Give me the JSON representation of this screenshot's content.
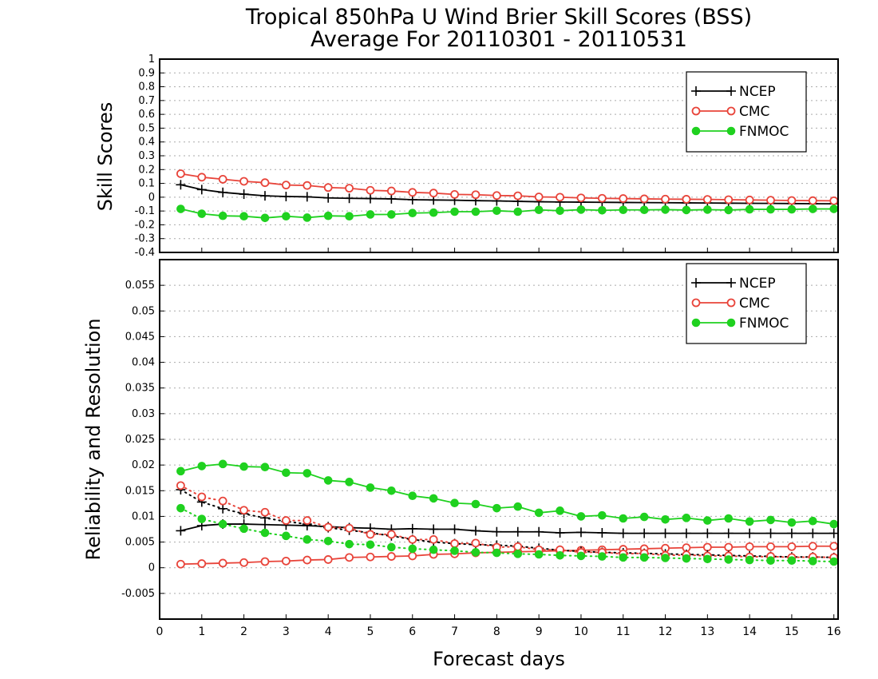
{
  "title_line1": "Tropical 850hPa U Wind Brier Skill Scores (BSS)",
  "title_line2": "Average For 20110301 - 20110531",
  "xlabel": "Forecast days",
  "colors": {
    "NCEP": "#000000",
    "CMC": "#e8443a",
    "FNMOC": "#1fd11f"
  },
  "chart_data": [
    {
      "type": "line",
      "ylabel": "Skill Scores",
      "xlim": [
        0,
        16.1
      ],
      "ylim": [
        -0.4,
        1
      ],
      "xticks": [
        "0",
        "1",
        "2",
        "3",
        "4",
        "5",
        "6",
        "7",
        "8",
        "9",
        "10",
        "11",
        "12",
        "13",
        "14",
        "15",
        "16"
      ],
      "yticks": [
        "-0.4",
        "-0.3",
        "-0.2",
        "-0.1",
        "0",
        "0.1",
        "0.2",
        "0.3",
        "0.4",
        "0.5",
        "0.6",
        "0.7",
        "0.8",
        "0.9",
        "1"
      ],
      "grid": true,
      "legend": {
        "position": "top-right",
        "entries": [
          "NCEP",
          "CMC",
          "FNMOC"
        ]
      },
      "x": [
        0.5,
        1,
        1.5,
        2,
        2.5,
        3,
        3.5,
        4,
        4.5,
        5,
        5.5,
        6,
        6.5,
        7,
        7.5,
        8,
        8.5,
        9,
        9.5,
        10,
        10.5,
        11,
        11.5,
        12,
        12.5,
        13,
        13.5,
        14,
        14.5,
        15,
        15.5,
        16
      ],
      "series": [
        {
          "name": "NCEP",
          "marker": "plus",
          "style": "solid",
          "values": [
            0.09,
            0.055,
            0.035,
            0.022,
            0.01,
            0.005,
            0.003,
            -0.005,
            -0.008,
            -0.01,
            -0.012,
            -0.018,
            -0.02,
            -0.022,
            -0.025,
            -0.027,
            -0.03,
            -0.033,
            -0.035,
            -0.036,
            -0.037,
            -0.038,
            -0.039,
            -0.04,
            -0.041,
            -0.042,
            -0.043,
            -0.044,
            -0.045,
            -0.046,
            -0.047,
            -0.048
          ]
        },
        {
          "name": "CMC",
          "marker": "open-circle",
          "style": "solid",
          "values": [
            0.17,
            0.145,
            0.13,
            0.115,
            0.105,
            0.088,
            0.085,
            0.07,
            0.065,
            0.05,
            0.045,
            0.035,
            0.03,
            0.02,
            0.018,
            0.012,
            0.01,
            0.002,
            0.0,
            -0.005,
            -0.008,
            -0.01,
            -0.012,
            -0.014,
            -0.015,
            -0.016,
            -0.018,
            -0.02,
            -0.022,
            -0.024,
            -0.025,
            -0.026
          ]
        },
        {
          "name": "FNMOC",
          "marker": "filled-circle",
          "style": "solid",
          "values": [
            -0.085,
            -0.12,
            -0.135,
            -0.138,
            -0.15,
            -0.138,
            -0.148,
            -0.135,
            -0.138,
            -0.125,
            -0.125,
            -0.115,
            -0.112,
            -0.105,
            -0.105,
            -0.098,
            -0.105,
            -0.092,
            -0.098,
            -0.09,
            -0.095,
            -0.092,
            -0.092,
            -0.09,
            -0.093,
            -0.09,
            -0.093,
            -0.088,
            -0.088,
            -0.088,
            -0.085,
            -0.085
          ]
        }
      ]
    },
    {
      "type": "line",
      "ylabel": "Reliability and Resolution",
      "xlim": [
        0,
        16.1
      ],
      "ylim": [
        -0.01,
        0.06
      ],
      "xticks": [
        "0",
        "1",
        "2",
        "3",
        "4",
        "5",
        "6",
        "7",
        "8",
        "9",
        "10",
        "11",
        "12",
        "13",
        "14",
        "15",
        "16"
      ],
      "yticks": [
        "-0.005",
        "0",
        "0.005",
        "0.01",
        "0.015",
        "0.02",
        "0.025",
        "0.03",
        "0.035",
        "0.04",
        "0.045",
        "0.05",
        "0.055"
      ],
      "grid": true,
      "legend": {
        "position": "top-right",
        "entries": [
          "NCEP",
          "CMC",
          "FNMOC"
        ]
      },
      "x": [
        0.5,
        1,
        1.5,
        2,
        2.5,
        3,
        3.5,
        4,
        4.5,
        5,
        5.5,
        6,
        6.5,
        7,
        7.5,
        8,
        8.5,
        9,
        9.5,
        10,
        10.5,
        11,
        11.5,
        12,
        12.5,
        13,
        13.5,
        14,
        14.5,
        15,
        15.5,
        16
      ],
      "series": [
        {
          "name": "NCEP",
          "marker": "plus",
          "style": "solid",
          "values": [
            0.0072,
            0.0082,
            0.0085,
            0.0085,
            0.0084,
            0.0083,
            0.0082,
            0.008,
            0.0078,
            0.0077,
            0.0075,
            0.0076,
            0.0075,
            0.0075,
            0.0072,
            0.007,
            0.007,
            0.007,
            0.0068,
            0.0069,
            0.0068,
            0.0067,
            0.0067,
            0.0067,
            0.0067,
            0.0067,
            0.0067,
            0.0067,
            0.0067,
            0.0067,
            0.0067,
            0.0067
          ]
        },
        {
          "name": "CMC",
          "marker": "open-circle",
          "style": "solid",
          "values": [
            0.0007,
            0.0008,
            0.0009,
            0.001,
            0.0012,
            0.0013,
            0.0015,
            0.0016,
            0.002,
            0.0021,
            0.0022,
            0.0023,
            0.0026,
            0.0027,
            0.0029,
            0.003,
            0.0031,
            0.0032,
            0.0033,
            0.0034,
            0.0035,
            0.0036,
            0.0037,
            0.0038,
            0.0039,
            0.004,
            0.004,
            0.0041,
            0.0041,
            0.0041,
            0.0042,
            0.0042
          ]
        },
        {
          "name": "FNMOC",
          "marker": "filled-circle",
          "style": "solid",
          "values": [
            0.0188,
            0.0198,
            0.0202,
            0.0197,
            0.0196,
            0.0185,
            0.0184,
            0.017,
            0.0167,
            0.0156,
            0.015,
            0.014,
            0.0135,
            0.0126,
            0.0124,
            0.0116,
            0.0119,
            0.0107,
            0.0111,
            0.01,
            0.0102,
            0.0096,
            0.0099,
            0.0094,
            0.0097,
            0.0092,
            0.0096,
            0.009,
            0.0093,
            0.0088,
            0.0091,
            0.0085
          ]
        },
        {
          "name": "",
          "legend_of": "NCEP",
          "marker": "plus",
          "style": "dotted",
          "values": [
            0.0152,
            0.0128,
            0.0115,
            0.0105,
            0.0097,
            0.009,
            0.0085,
            0.0078,
            0.0073,
            0.0068,
            0.0062,
            0.0055,
            0.005,
            0.0047,
            0.0045,
            0.0044,
            0.0042,
            0.0038,
            0.0034,
            0.0032,
            0.003,
            0.0029,
            0.0028,
            0.0027,
            0.0026,
            0.0025,
            0.0024,
            0.0023,
            0.0022,
            0.0021,
            0.0021,
            0.002
          ]
        },
        {
          "name": "",
          "legend_of": "CMC",
          "marker": "open-circle",
          "style": "dotted",
          "values": [
            0.016,
            0.0138,
            0.013,
            0.0112,
            0.0108,
            0.0092,
            0.0092,
            0.0079,
            0.0077,
            0.0065,
            0.0065,
            0.0055,
            0.0055,
            0.0047,
            0.0048,
            0.004,
            0.0041,
            0.0035,
            0.0035,
            0.003,
            0.003,
            0.0027,
            0.0028,
            0.0024,
            0.0025,
            0.0023,
            0.0023,
            0.0021,
            0.0022,
            0.002,
            0.0021,
            0.002
          ]
        },
        {
          "name": "",
          "legend_of": "FNMOC",
          "marker": "filled-circle",
          "style": "dotted",
          "values": [
            0.0116,
            0.0095,
            0.0085,
            0.0076,
            0.0068,
            0.0062,
            0.0055,
            0.0052,
            0.0046,
            0.0045,
            0.004,
            0.0037,
            0.0035,
            0.0033,
            0.003,
            0.0029,
            0.0027,
            0.0026,
            0.0024,
            0.0023,
            0.0022,
            0.002,
            0.002,
            0.0019,
            0.0018,
            0.0017,
            0.0016,
            0.0015,
            0.0014,
            0.0014,
            0.0013,
            0.0012
          ]
        }
      ]
    }
  ]
}
